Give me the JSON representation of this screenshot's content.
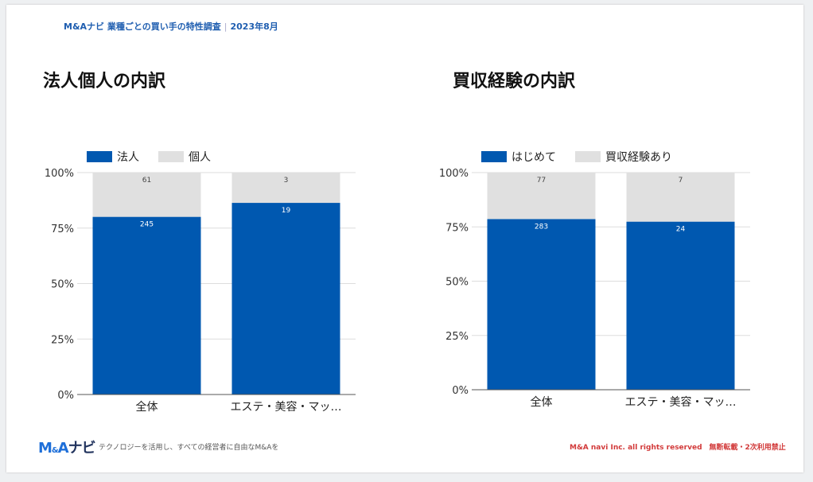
{
  "header": {
    "title": "M&Aナビ 業種ごとの買い手の特性調査",
    "date": "2023年8月"
  },
  "colors": {
    "primary": "#0058b0",
    "secondary": "#e0e0e0"
  },
  "chart_data": [
    {
      "type": "bar",
      "stacked": "percent",
      "title": "法人個人の内訳",
      "categories": [
        "全体",
        "エステ・美容・マッ…"
      ],
      "series": [
        {
          "name": "法人",
          "values": [
            245,
            19
          ],
          "color": "#0058b0"
        },
        {
          "name": "個人",
          "values": [
            61,
            3
          ],
          "color": "#e0e0e0"
        }
      ],
      "yticks": [
        "0%",
        "25%",
        "50%",
        "75%",
        "100%"
      ],
      "ylim": [
        0,
        100
      ],
      "legend": "top-left",
      "grid": true
    },
    {
      "type": "bar",
      "stacked": "percent",
      "title": "買収経験の内訳",
      "categories": [
        "全体",
        "エステ・美容・マッ…"
      ],
      "series": [
        {
          "name": "はじめて",
          "values": [
            283,
            24
          ],
          "color": "#0058b0"
        },
        {
          "name": "買収経験あり",
          "values": [
            77,
            7
          ],
          "color": "#e0e0e0"
        }
      ],
      "yticks": [
        "0%",
        "25%",
        "50%",
        "75%",
        "100%"
      ],
      "ylim": [
        0,
        100
      ],
      "legend": "top-left",
      "grid": true
    }
  ],
  "footer": {
    "logo": "M&Aナビ",
    "tagline": "テクノロジーを活用し、すべての経営者に自由なM&Aを",
    "copyright": "M&A navi Inc. all rights reserved　無断転載・2次利用禁止"
  }
}
